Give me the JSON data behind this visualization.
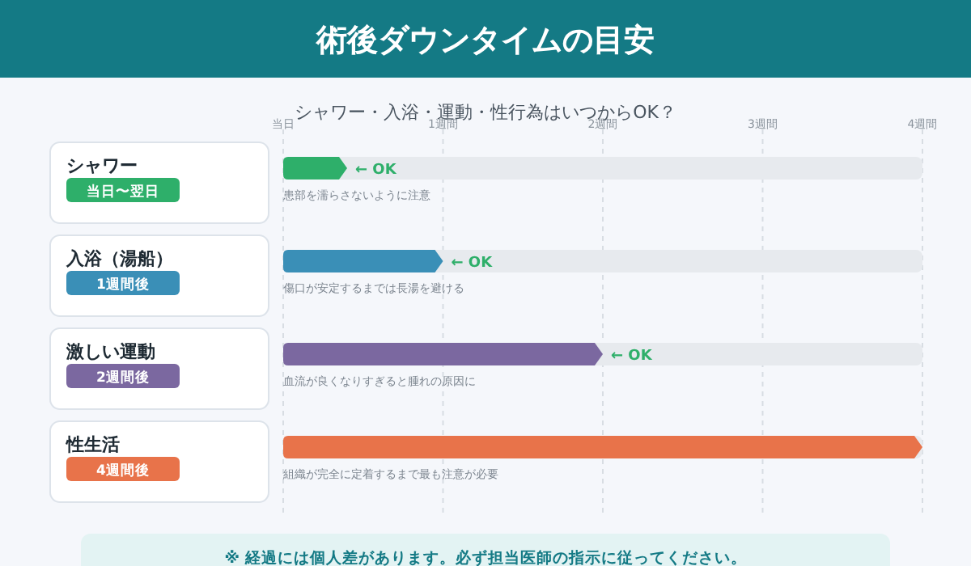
{
  "chart_data": {
    "type": "bar",
    "orientation": "horizontal",
    "title": "術後ダウンタイムの目安",
    "subtitle": "シャワー・入浴・運動・性行為はいつからOK？",
    "categories": [
      "シャワー",
      "入浴（湯船）",
      "激しい運動",
      "性生活"
    ],
    "values": [
      0.4,
      1,
      2,
      4
    ],
    "colors": [
      "#2eaf6a",
      "#3a8fb7",
      "#7b68a0",
      "#e8734a"
    ],
    "xlim": [
      0,
      4
    ],
    "xticks": [
      {
        "value": 0,
        "label": "当日"
      },
      {
        "value": 1,
        "label": "1週間"
      },
      {
        "value": 2,
        "label": "2週間"
      },
      {
        "value": 3,
        "label": "3週間"
      },
      {
        "value": 4,
        "label": "4週間"
      }
    ],
    "grid": "x",
    "annotations": [
      "当日〜翌日",
      "1週間後",
      "2週間後",
      "4週間後",
      {
        "text": "← OK",
        "x": 0.4,
        "y": "シャワー"
      },
      {
        "text": "← OK",
        "x": 1,
        "y": "入浴（湯船）"
      },
      {
        "text": "← OK",
        "x": 2,
        "y": "激しい運動"
      },
      {
        "text": "患部を濡らさないように注意",
        "x": 0,
        "y": "シャワー"
      },
      {
        "text": "傷口が安定するまでは長湯を避ける",
        "x": 0,
        "y": "入浴（湯船）"
      },
      {
        "text": "血流が良くなりすぎると腫れの原因に",
        "x": 0,
        "y": "激しい運動"
      },
      {
        "text": "組織が完全に定着するまで最も注意が必要",
        "x": 0,
        "y": "性生活"
      },
      "※ 経過には個人差があります。必ず担当医師の指示に従ってください。"
    ]
  }
}
